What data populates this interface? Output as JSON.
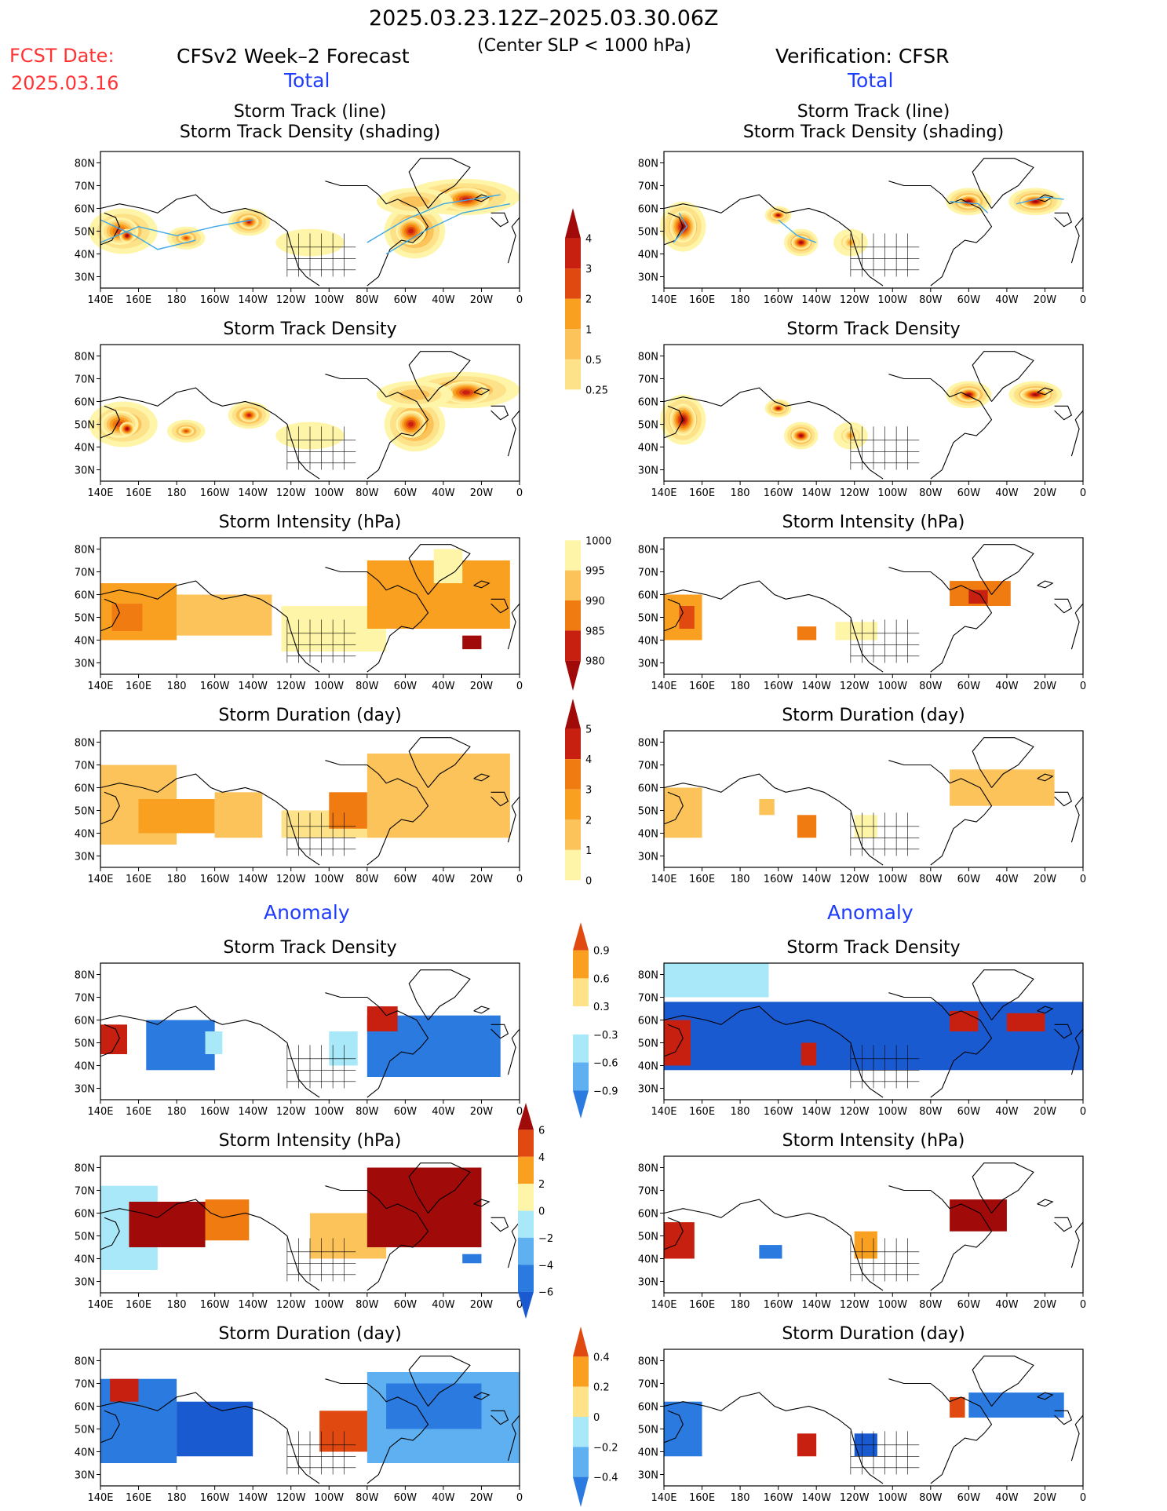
{
  "header": {
    "period": "2025.03.23.12Z–2025.03.30.06Z",
    "criterion": "(Center SLP < 1000 hPa)",
    "fcst_label": "FCST Date:",
    "fcst_date": "2025.03.16",
    "left_title": "CFSv2 Week–2 Forecast",
    "right_title": "Verification: CFSR",
    "total_label": "Total",
    "anomaly_label": "Anomaly"
  },
  "panels": {
    "track_title_1": "Storm Track (line)",
    "track_title_2": "Storm Track Density (shading)",
    "density": "Storm Track Density",
    "intensity": "Storm Intensity (hPa)",
    "duration": "Storm Duration (day)"
  },
  "axes": {
    "lat": [
      "80N",
      "70N",
      "60N",
      "50N",
      "40N",
      "30N"
    ],
    "lon": [
      "140E",
      "160E",
      "180",
      "160W",
      "140W",
      "120W",
      "100W",
      "80W",
      "60W",
      "40W",
      "20W",
      "0"
    ]
  },
  "colorbars": {
    "density_total": [
      "4",
      "3",
      "2",
      "1",
      "0.5",
      "0.25"
    ],
    "intensity_total": [
      "1000",
      "995",
      "990",
      "985",
      "980"
    ],
    "duration_total": [
      "5",
      "4",
      "3",
      "2",
      "1",
      "0"
    ],
    "density_anom": [
      "0.9",
      "0.6",
      "0.3",
      "−0.3",
      "−0.6",
      "−0.9"
    ],
    "intensity_anom": [
      "6",
      "4",
      "2",
      "0",
      "−2",
      "−4",
      "−6"
    ],
    "duration_anom": [
      "0.4",
      "0.2",
      "0",
      "−0.2",
      "−0.4"
    ]
  },
  "colors": {
    "warm": [
      "#fff5a8",
      "#fde28a",
      "#fcc35a",
      "#f9a021",
      "#f07b11",
      "#e04a10",
      "#c82010",
      "#a00a08"
    ],
    "cool": [
      "#a8e8f8",
      "#5fb0f0",
      "#2a7ae0",
      "#1a5ad0"
    ],
    "track_line": "#3fa8e8",
    "text_red": "#ff3333",
    "text_blue": "#1e3cff"
  }
}
